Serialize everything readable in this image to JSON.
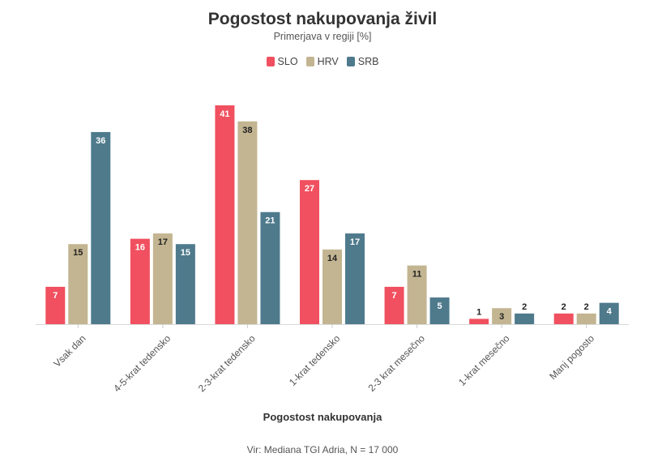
{
  "chart_data": {
    "type": "bar",
    "title": "Pogostost nakupovanja živil",
    "subtitle": "Primerjava v regiji [%]",
    "xlabel": "Pogostost nakupovanja",
    "ylabel": "",
    "source": "Vir: Mediana TGI Adria, N = 17 000",
    "ylim": [
      0,
      41
    ],
    "categories": [
      "Vsak dan",
      "4-5-krat tedensko",
      "2-3-krat tedensko",
      "1-krat tedensko",
      "2-3 krat mesečno",
      "1-krat mesečno",
      "Manj pogosto"
    ],
    "series": [
      {
        "name": "SLO",
        "color": "#f0505f",
        "values": [
          7,
          16,
          41,
          27,
          7,
          1,
          2
        ]
      },
      {
        "name": "HRV",
        "color": "#c3b591",
        "values": [
          15,
          17,
          38,
          14,
          11,
          3,
          2
        ]
      },
      {
        "name": "SRB",
        "color": "#4e7a8c",
        "values": [
          36,
          15,
          21,
          17,
          5,
          2,
          4
        ]
      }
    ],
    "legend_position": "top-center",
    "grid": false
  }
}
